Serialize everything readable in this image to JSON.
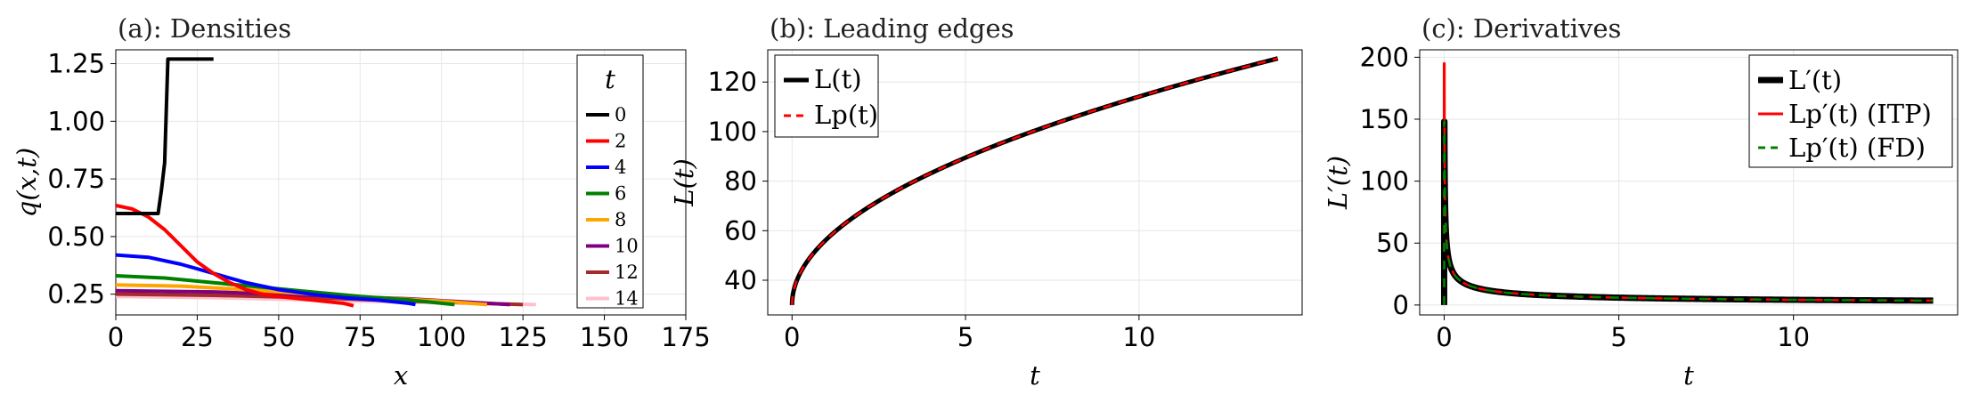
{
  "chart_data": [
    {
      "type": "line",
      "title": "(a): Densities",
      "xlabel": "x",
      "ylabel": "q(x,t)",
      "xlim": [
        0,
        175
      ],
      "ylim": [
        0.16,
        1.31
      ],
      "xticks": [
        0,
        25,
        50,
        75,
        100,
        125,
        150,
        175
      ],
      "yticks": [
        0.25,
        0.5,
        0.75,
        1.0,
        1.25
      ],
      "ytick_labels": [
        "0.25",
        "0.50",
        "0.75",
        "1.00",
        "1.25"
      ],
      "grid": true,
      "legend": {
        "title": "t",
        "placement": "top-right"
      },
      "series": [
        {
          "name": "0",
          "color": "#000000",
          "x": [
            0,
            13,
            14,
            15,
            16,
            30
          ],
          "y": [
            0.6,
            0.6,
            0.7,
            0.82,
            1.27,
            1.27
          ]
        },
        {
          "name": "2",
          "color": "#ff0000",
          "x": [
            0,
            5,
            10,
            15,
            20,
            25,
            30,
            35,
            40,
            45,
            50,
            60,
            70,
            73
          ],
          "y": [
            0.635,
            0.62,
            0.585,
            0.53,
            0.46,
            0.39,
            0.34,
            0.3,
            0.27,
            0.25,
            0.24,
            0.225,
            0.21,
            0.2
          ]
        },
        {
          "name": "4",
          "color": "#0000ff",
          "x": [
            0,
            10,
            20,
            30,
            40,
            50,
            60,
            70,
            80,
            90,
            92
          ],
          "y": [
            0.42,
            0.41,
            0.38,
            0.34,
            0.3,
            0.27,
            0.25,
            0.235,
            0.225,
            0.21,
            0.205
          ]
        },
        {
          "name": "6",
          "color": "#008000",
          "x": [
            0,
            15,
            30,
            45,
            60,
            75,
            90,
            104
          ],
          "y": [
            0.33,
            0.32,
            0.3,
            0.28,
            0.26,
            0.24,
            0.225,
            0.205
          ]
        },
        {
          "name": "8",
          "color": "#ffa500",
          "x": [
            0,
            20,
            40,
            60,
            80,
            100,
            114
          ],
          "y": [
            0.29,
            0.285,
            0.27,
            0.25,
            0.235,
            0.22,
            0.205
          ]
        },
        {
          "name": "10",
          "color": "#800080",
          "x": [
            0,
            30,
            60,
            90,
            121
          ],
          "y": [
            0.265,
            0.26,
            0.245,
            0.23,
            0.205
          ]
        },
        {
          "name": "12",
          "color": "#a52a2a",
          "x": [
            0,
            30,
            60,
            90,
            125
          ],
          "y": [
            0.25,
            0.245,
            0.235,
            0.22,
            0.205
          ]
        },
        {
          "name": "14",
          "color": "#ffc0cb",
          "x": [
            0,
            30,
            60,
            90,
            129
          ],
          "y": [
            0.24,
            0.235,
            0.225,
            0.215,
            0.205
          ]
        }
      ]
    },
    {
      "type": "line",
      "title": "(b): Leading edges",
      "xlabel": "t",
      "ylabel": "L(t)",
      "xlim": [
        -0.7,
        14.7
      ],
      "ylim": [
        26,
        133
      ],
      "xticks": [
        0,
        5,
        10
      ],
      "yticks": [
        40,
        60,
        80,
        100,
        120
      ],
      "grid": true,
      "legend": {
        "placement": "top-left"
      },
      "series": [
        {
          "name": "L(t)",
          "color": "#000000",
          "style": "solid"
        },
        {
          "name": "Lp(t)",
          "color": "#ff0000",
          "style": "dashed"
        }
      ],
      "model": {
        "form": "sqrt",
        "y0": 30,
        "scale": 26.6,
        "t_max": 14
      }
    },
    {
      "type": "line",
      "title": "(c):  Derivatives",
      "xlabel": "t",
      "ylabel": "L′(t)",
      "xlim": [
        -0.7,
        14.7
      ],
      "ylim": [
        -8,
        206
      ],
      "xticks": [
        0,
        5,
        10
      ],
      "yticks": [
        0,
        50,
        100,
        150,
        200
      ],
      "grid": true,
      "legend": {
        "placement": "top-right"
      },
      "series": [
        {
          "name": "L′(t)",
          "color": "#000000",
          "style": "solid",
          "peak": 148
        },
        {
          "name": "Lp′(t) (ITP)",
          "color": "#ff0000",
          "style": "solid",
          "peak": 195
        },
        {
          "name": "Lp′(t) (FD)",
          "color": "#008000",
          "style": "dashed",
          "peak": 148
        }
      ],
      "model": {
        "form": "inverse-sqrt",
        "scale": 13.3,
        "t_max": 14
      }
    }
  ]
}
